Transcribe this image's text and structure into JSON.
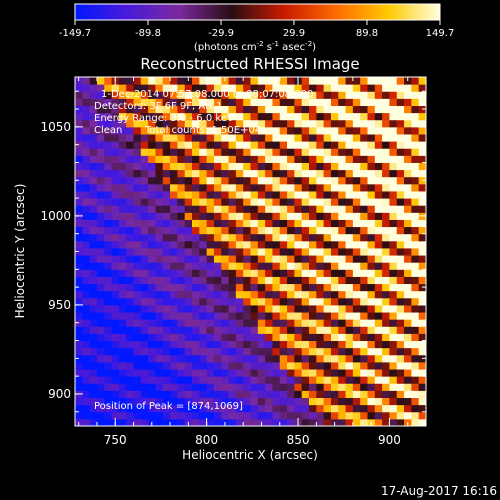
{
  "chart_data": {
    "type": "heatmap",
    "title": "Reconstructed RHESSI Image",
    "xlabel": "Heliocentric X (arcsec)",
    "ylabel": "Heliocentric Y (arcsec)",
    "xlim": [
      728,
      920
    ],
    "ylim": [
      882,
      1078
    ],
    "x_ticks": [
      750,
      800,
      850,
      900
    ],
    "y_ticks": [
      900,
      950,
      1000,
      1050
    ],
    "colorbar": {
      "unit_label": "(photons cm",
      "unit_exp1": "-2",
      "unit_mid": " s",
      "unit_exp2": "-1",
      "unit_mid2": " asec",
      "unit_exp3": "-2",
      "unit_end": ")",
      "min": -149.7,
      "max": 149.7,
      "tick_labels": [
        "-149.7",
        "-89.8",
        "-29.9",
        "29.9",
        "89.8",
        "149.7"
      ],
      "tick_values": [
        -149.7,
        -89.8,
        -29.9,
        29.9,
        89.8,
        149.7
      ],
      "colors": [
        "#0018ff",
        "#4a1ad8",
        "#7a2a9e",
        "#2a0d14",
        "#c81a00",
        "#ff6a00",
        "#ffc800",
        "#ffffe0"
      ]
    },
    "annotations": {
      "time_range": "1-Dec-2014 07:57:08.000 to 08:07:08.000",
      "detectors": "Detectors: 3F 6F 9F, Att 1",
      "energy": "Energy Range: 3.0 - 6.0 keV",
      "algorithm": "Clean",
      "counts": "Total counts: 1.50E+04",
      "peak": "Position of Peak = [874,1069]"
    },
    "peak_position": [
      874,
      1069
    ],
    "pattern": {
      "stripe_slope_dy_dx": -0.45,
      "stripe_period_arcsec": 14,
      "intensity_gradient": "increases toward upper-right; minimum at lower-left",
      "max_value": 149.7,
      "min_value": -149.7
    }
  },
  "footer": {
    "date": "17-Aug-2017 16:16"
  }
}
